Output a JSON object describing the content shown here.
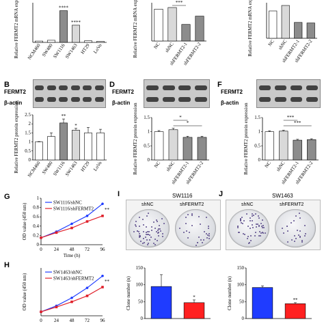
{
  "panels": {
    "B": "B",
    "D": "D",
    "F": "F",
    "G": "G",
    "H": "H",
    "I": "I",
    "J": "J"
  },
  "blots": {
    "fermt2": "FERMT2",
    "actin": "β-actin"
  },
  "colony": {
    "I_title": "SW1116",
    "J_title": "SW1463",
    "shNC": "shNC",
    "shFERMT2": "shFERMT2"
  },
  "colors": {
    "bar_blue": "#1f3cff",
    "bar_red": "#ff2020",
    "line_blue": "#1f3cff",
    "line_red": "#e0202a"
  },
  "chart_data": [
    {
      "id": "A",
      "type": "bar",
      "ylabel": "Relative FERMT2 mRNA expression",
      "categories": [
        "NCM460",
        "SW480",
        "SW1116",
        "SW1463",
        "HT29",
        "LoVo"
      ],
      "values": [
        1.0,
        1.6,
        24.0,
        13.0,
        1.2,
        0.8
      ],
      "ylim": [
        0,
        30
      ],
      "annotations": [
        "****",
        "****"
      ]
    },
    {
      "id": "C",
      "type": "bar",
      "ylabel": "Relative FERMT2 mRNA expression",
      "categories": [
        "NC",
        "shNC",
        "shFERMT2-1",
        "shFERMT2-2"
      ],
      "values": [
        1.0,
        1.05,
        0.52,
        0.78
      ],
      "ylim": [
        0,
        1.2
      ],
      "annotations": [
        "***"
      ]
    },
    {
      "id": "E",
      "type": "bar",
      "ylabel": "Relative FERMT2 mRNA expression",
      "categories": [
        "NC",
        "shNC",
        "shFERMT2-1",
        "shFERMT2-2"
      ],
      "values": [
        1.0,
        1.2,
        0.58,
        0.56
      ],
      "ylim": [
        0,
        1.3
      ],
      "annotations": []
    },
    {
      "id": "B",
      "type": "bar",
      "ylabel": "Relative FERMT2 protein expression",
      "categories": [
        "NCM460",
        "SW480",
        "SW1116",
        "SW1463",
        "HT29",
        "LoVo"
      ],
      "values": [
        1.0,
        1.3,
        2.05,
        1.65,
        1.5,
        1.5
      ],
      "errors": [
        0.02,
        0.2,
        0.22,
        0.1,
        0.3,
        0.2
      ],
      "ylim": [
        0,
        2.5
      ],
      "yticks": [
        0.0,
        0.5,
        1.0,
        1.5,
        2.0,
        2.5
      ],
      "annotations": [
        "**",
        "*"
      ]
    },
    {
      "id": "D",
      "type": "bar",
      "ylabel": "Relative FERMT2 protein expression",
      "categories": [
        "NC",
        "shNC",
        "shFERMT2-1",
        "shFERMT2-2"
      ],
      "values": [
        1.0,
        1.07,
        0.8,
        0.8
      ],
      "errors": [
        0.04,
        0.05,
        0.04,
        0.04
      ],
      "ylim": [
        0,
        1.5
      ],
      "yticks": [
        0.0,
        0.5,
        1.0,
        1.5
      ],
      "annotations": [
        "*",
        "*"
      ]
    },
    {
      "id": "F",
      "type": "bar",
      "ylabel": "Relative FERMT2 protein expression",
      "categories": [
        "NC",
        "shNC",
        "shFERMT2-1",
        "shFERMT2-2"
      ],
      "values": [
        1.0,
        1.02,
        0.7,
        0.72
      ],
      "errors": [
        0.03,
        0.03,
        0.03,
        0.03
      ],
      "ylim": [
        0,
        1.5
      ],
      "yticks": [
        0.0,
        0.5,
        1.0,
        1.5
      ],
      "annotations": [
        "***",
        "***"
      ]
    },
    {
      "id": "G",
      "type": "line",
      "ylabel": "OD value (450 nm)",
      "xlabel": "Time (h)",
      "x": [
        0,
        24,
        48,
        72,
        96
      ],
      "ylim": [
        0,
        1.0
      ],
      "yticks": [
        0.0,
        0.2,
        0.4,
        0.6,
        0.8,
        1.0
      ],
      "series": [
        {
          "name": "SW1116/shNC",
          "values": [
            0.15,
            0.28,
            0.45,
            0.62,
            0.88
          ]
        },
        {
          "name": "SW1116/shFERMT2",
          "values": [
            0.15,
            0.26,
            0.36,
            0.5,
            0.62
          ]
        }
      ],
      "annotations": [
        "**"
      ]
    },
    {
      "id": "H",
      "type": "line",
      "ylabel": "OD value (450 nm)",
      "x": [
        0,
        24,
        48,
        72,
        96
      ],
      "ylim": [
        0,
        1.2
      ],
      "series": [
        {
          "name": "SW1463/shNC",
          "values": [
            0.1,
            0.25,
            0.45,
            0.7,
            1.0
          ]
        },
        {
          "name": "SW1463/shFERMT2",
          "values": [
            0.1,
            0.22,
            0.35,
            0.5,
            0.72
          ]
        }
      ],
      "annotations": [
        "**"
      ]
    },
    {
      "id": "I",
      "type": "bar",
      "ylabel": "Clone number (n)",
      "categories": [
        "shNC",
        "shFERMT2"
      ],
      "values": [
        95,
        47
      ],
      "errors": [
        35,
        8
      ],
      "ylim": [
        0,
        150
      ],
      "yticks": [
        0,
        50,
        100,
        150
      ],
      "annotations": [
        "*"
      ]
    },
    {
      "id": "J",
      "type": "bar",
      "ylabel": "Clone number (n)",
      "categories": [
        "shNC",
        "shFERMT2"
      ],
      "values": [
        92,
        44
      ],
      "errors": [
        5,
        3
      ],
      "ylim": [
        0,
        150
      ],
      "yticks": [
        0,
        50,
        100,
        150
      ],
      "annotations": [
        "**"
      ]
    }
  ]
}
